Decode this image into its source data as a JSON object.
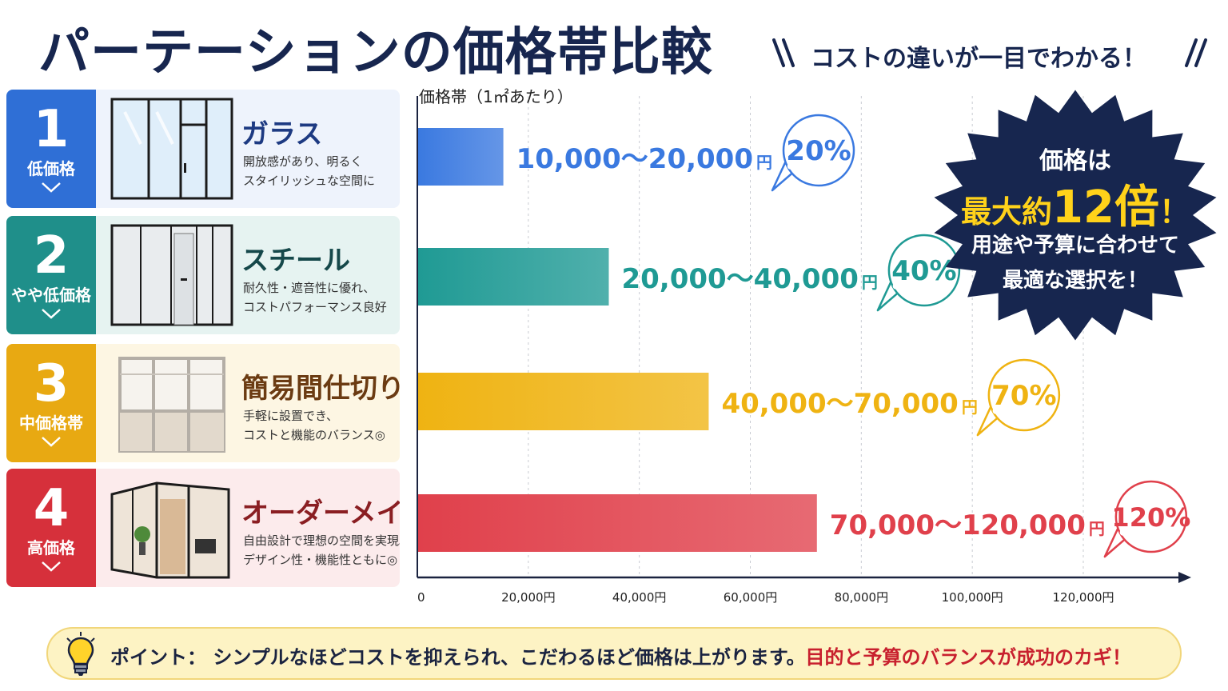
{
  "header": {
    "title": "パーテーションの価格帯比較",
    "tagline": "コストの違いが一目でわかる！"
  },
  "categories": [
    {
      "number": "1",
      "level": "低価格",
      "name": "ガラス",
      "desc": [
        "開放感があり、明るく",
        "スタイリッシュな空間に"
      ],
      "color": "#2f6fd6",
      "bg": "#eef3fc",
      "name_color": "#1d3a82",
      "image": "glass-partition-image"
    },
    {
      "number": "2",
      "level": "やや低価格",
      "name": "スチール",
      "desc": [
        "耐久性・遮音性に優れ、",
        "コストパフォーマンス良好"
      ],
      "color": "#1f8f8a",
      "bg": "#e6f3f1",
      "name_color": "#15484a",
      "image": "steel-partition-image"
    },
    {
      "number": "3",
      "level": "中価格帯",
      "name": "簡易間仕切り",
      "desc": [
        "手軽に設置でき、",
        "コストと機能のバランス◎"
      ],
      "color": "#e8a912",
      "bg": "#fdf6e3",
      "name_color": "#6b3b12",
      "image": "simple-partition-image"
    },
    {
      "number": "4",
      "level": "高価格",
      "name": "オーダーメイド",
      "desc": [
        "自由設計で理想の空間を実現。",
        "デザイン性・機能性ともに◎"
      ],
      "color": "#d6303b",
      "bg": "#fcebec",
      "name_color": "#8a1e22",
      "image": "custom-partition-image"
    }
  ],
  "chart_data": {
    "type": "bar",
    "orientation": "horizontal",
    "ylabel": "価格帯（1㎡あたり）",
    "xlim": [
      0,
      120000
    ],
    "x_ticks": [
      "0",
      "20,000円",
      "40,000円",
      "60,000円",
      "80,000円",
      "100,000円",
      "120,000円"
    ],
    "x_tick_values": [
      0,
      20000,
      40000,
      60000,
      80000,
      100000,
      120000
    ],
    "grid": true,
    "categories": [
      "ガラス",
      "スチール",
      "簡易間仕切り",
      "オーダーメイド"
    ],
    "values": [
      15500,
      34500,
      52500,
      72000
    ],
    "range_labels": [
      "10,000〜20,000",
      "20,000〜40,000",
      "40,000〜70,000",
      "70,000〜120,000"
    ],
    "unit": "円",
    "percent_labels": [
      "20%",
      "40%",
      "70%",
      "120%"
    ],
    "colors": [
      "#3a79e0",
      "#1f9a94",
      "#efb312",
      "#e0404b"
    ]
  },
  "callout": {
    "line1": "価格は",
    "line2_pre": "最大約",
    "line2_big": "12倍",
    "line2_post": "！",
    "line3": "用途や予算に合わせて",
    "line4": "最適な選択を！"
  },
  "point": {
    "icon": "lightbulb-icon",
    "text": "ポイント：  シンプルなほどコストを抑えられ、こだわるほど価格は上がります。",
    "highlight": "目的と予算のバランスが成功のカギ！"
  }
}
